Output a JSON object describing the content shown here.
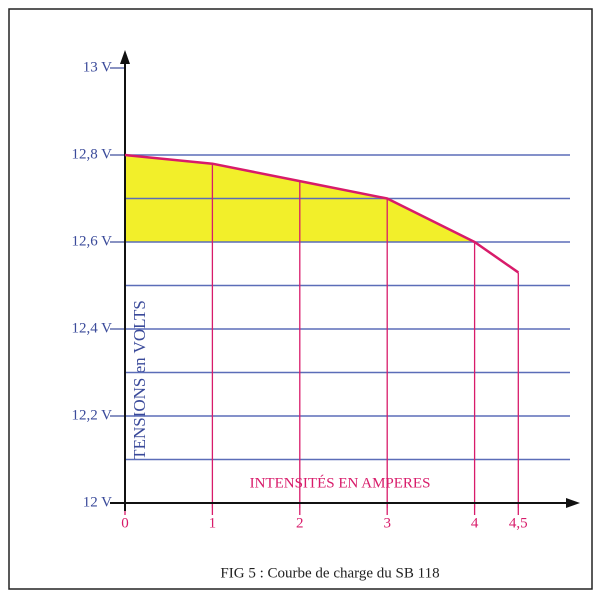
{
  "chart_data": {
    "type": "line",
    "title": "FIG 5 : Courbe de charge du SB 118",
    "x_label": "INTENSITÉS EN AMPERES",
    "y_label": "TENSIONS en VOLTS",
    "x": [
      0,
      1,
      2,
      3,
      4,
      4.5
    ],
    "series": [
      {
        "color": "#d81b6a",
        "values": [
          12.8,
          12.78,
          12.74,
          12.7,
          12.6,
          12.53
        ]
      }
    ],
    "xlim": [
      0,
      5
    ],
    "ylim": [
      12,
      13
    ],
    "xticks": [
      0,
      1,
      2,
      3,
      4,
      {
        "value": 4.5,
        "label": "4,5"
      }
    ],
    "yticks": [
      {
        "value": 12,
        "label": "12 V"
      },
      {
        "value": 12.2,
        "label": "12,2 V"
      },
      {
        "value": 12.4,
        "label": "12,4 V"
      },
      {
        "value": 12.6,
        "label": "12,6 V"
      },
      {
        "value": 12.8,
        "label": "12,8 V"
      },
      {
        "value": 13,
        "label": "13 V"
      }
    ],
    "ygrid": [
      12.1,
      12.2,
      12.3,
      12.4,
      12.5,
      12.6,
      12.7,
      12.8
    ],
    "grid_color": "#5b6db8",
    "shade_above": 12.6,
    "shade_color": "#f2ef2a"
  }
}
